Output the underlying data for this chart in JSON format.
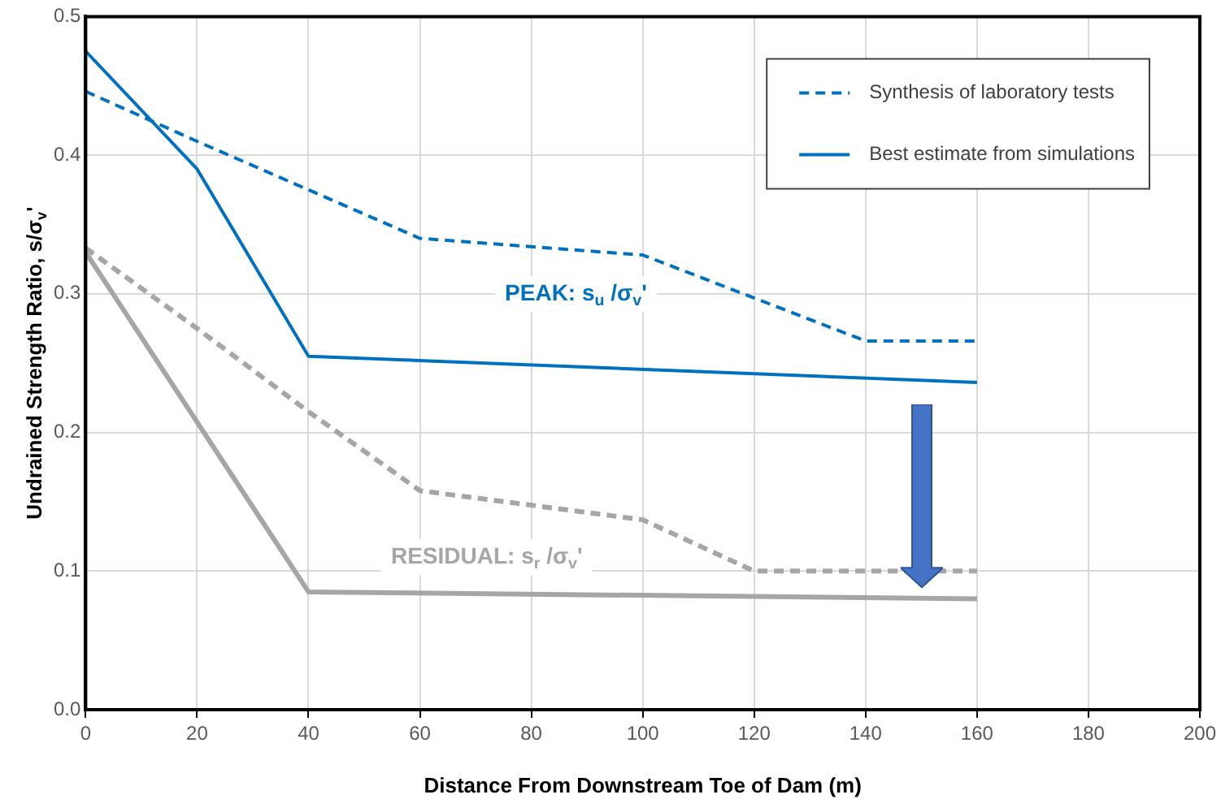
{
  "chart_data": {
    "type": "line",
    "xlabel": "Distance From Downstream Toe of Dam (m)",
    "ylabel": "Undrained Strength Ratio, s/σ$_{v}$'",
    "xlim": [
      0,
      200
    ],
    "xticks": [
      0,
      20,
      40,
      60,
      80,
      100,
      120,
      140,
      160,
      180,
      200
    ],
    "ylim": [
      0,
      0.5
    ],
    "yticks": [
      {
        "value": 0,
        "label": "0.0"
      },
      0.1,
      0.2,
      0.3,
      0.4,
      0.5
    ],
    "grid": true,
    "legend": "top right",
    "marker": "none",
    "series": [
      {
        "name": "Synthesis of laboratory tests",
        "color": "#0070c0",
        "line_style": "dashed",
        "x": [
          0,
          20,
          40,
          60,
          100,
          140,
          160
        ],
        "values": [
          0.446,
          0.41,
          0.375,
          0.34,
          0.328,
          0.266,
          0.266
        ]
      },
      {
        "name": "Best estimate from simulations",
        "color": "#0070c0",
        "line_style": "solid",
        "x": [
          0,
          20,
          40,
          160
        ],
        "values": [
          0.475,
          0.39,
          0.255,
          0.236
        ]
      },
      {
        "color": "#a6a6a6",
        "line_style": "dashed",
        "x": [
          0,
          20,
          40,
          60,
          100,
          120,
          160
        ],
        "values": [
          0.333,
          0.275,
          0.215,
          0.158,
          0.137,
          0.1,
          0.1
        ]
      },
      {
        "color": "#a6a6a6",
        "line_style": "solid",
        "x": [
          0,
          40,
          160
        ],
        "values": [
          0.33,
          0.085,
          0.08
        ]
      }
    ],
    "annotations": [
      "PEAK: s$_{u}$ /σ$_{v}$'",
      "RESIDUAL: s$_{r}$ /σ$_{v}$'"
    ]
  }
}
